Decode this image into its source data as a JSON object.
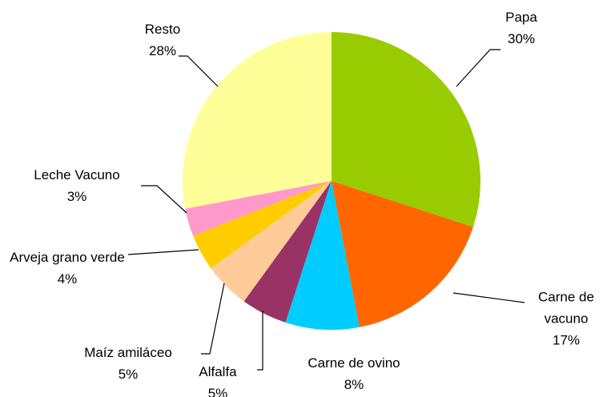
{
  "chart_data": {
    "type": "pie",
    "categories": [
      "Papa",
      "Carne de vacuno",
      "Carne de ovino",
      "Alfalfa",
      "Maíz amiláceo",
      "Arveja grano verde",
      "Leche Vacuno",
      "Resto"
    ],
    "values": [
      30,
      17,
      8,
      5,
      5,
      4,
      3,
      28
    ],
    "value_labels": [
      "30%",
      "17%",
      "8%",
      "5%",
      "5%",
      "4%",
      "3%",
      "28%"
    ],
    "colors": [
      "#99cc00",
      "#ff6600",
      "#00ccff",
      "#993366",
      "#ffcc99",
      "#ffcc00",
      "#ff99cc",
      "#ffff99"
    ]
  }
}
